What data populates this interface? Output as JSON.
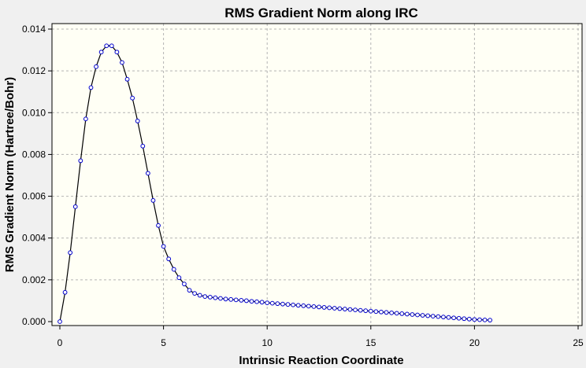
{
  "chart_data": {
    "type": "line",
    "title": "RMS Gradient Norm along IRC",
    "xlabel": "Intrinsic Reaction Coordinate",
    "ylabel": "RMS Gradient Norm (Hartree/Bohr)",
    "xlim": [
      0,
      25
    ],
    "ylim": [
      0,
      0.014
    ],
    "xticks": [
      0,
      5,
      10,
      15,
      20,
      25
    ],
    "xtick_labels": [
      "0",
      "5",
      "10",
      "15",
      "20",
      "25"
    ],
    "yticks": [
      0,
      0.002,
      0.004,
      0.006,
      0.008,
      0.01,
      0.012,
      0.014
    ],
    "ytick_labels": [
      "0.000",
      "0.002",
      "0.004",
      "0.006",
      "0.008",
      "0.010",
      "0.012",
      "0.014"
    ],
    "grid": true,
    "series": [
      {
        "x": [
          0,
          0.25,
          0.5,
          0.75,
          1.0,
          1.25,
          1.5,
          1.75,
          2.0,
          2.25,
          2.5,
          2.75,
          3.0,
          3.25,
          3.5,
          3.75,
          4.0,
          4.25,
          4.5,
          4.75,
          5.0,
          5.25,
          5.5,
          5.75,
          6.0,
          6.25,
          6.5,
          6.75,
          7.0,
          7.25,
          7.5,
          7.75,
          8.0,
          8.25,
          8.5,
          8.75,
          9.0,
          9.25,
          9.5,
          9.75,
          10.0,
          10.25,
          10.5,
          10.75,
          11.0,
          11.25,
          11.5,
          11.75,
          12.0,
          12.25,
          12.5,
          12.75,
          13.0,
          13.25,
          13.5,
          13.75,
          14.0,
          14.25,
          14.5,
          14.75,
          15.0,
          15.25,
          15.5,
          15.75,
          16.0,
          16.25,
          16.5,
          16.75,
          17.0,
          17.25,
          17.5,
          17.75,
          18.0,
          18.25,
          18.5,
          18.75,
          19.0,
          19.25,
          19.5,
          19.75,
          20.0,
          20.25,
          20.5,
          20.75
        ],
        "y": [
          0.0,
          0.0014,
          0.0033,
          0.0055,
          0.0077,
          0.0097,
          0.0112,
          0.0122,
          0.0129,
          0.0132,
          0.0132,
          0.0129,
          0.0124,
          0.0116,
          0.0107,
          0.0096,
          0.0084,
          0.0071,
          0.0058,
          0.0046,
          0.0036,
          0.003,
          0.0025,
          0.0021,
          0.0018,
          0.0015,
          0.00135,
          0.00126,
          0.0012,
          0.00117,
          0.00114,
          0.00111,
          0.00108,
          0.00106,
          0.00104,
          0.00102,
          0.001,
          0.00097,
          0.00095,
          0.00093,
          0.0009,
          0.00088,
          0.00086,
          0.00084,
          0.00082,
          0.0008,
          0.00078,
          0.00076,
          0.00074,
          0.00072,
          0.0007,
          0.00068,
          0.00066,
          0.00064,
          0.00062,
          0.0006,
          0.00058,
          0.00056,
          0.00054,
          0.00052,
          0.0005,
          0.00048,
          0.00046,
          0.00044,
          0.00042,
          0.0004,
          0.00038,
          0.00036,
          0.00034,
          0.00032,
          0.0003,
          0.00028,
          0.00026,
          0.00024,
          0.00022,
          0.0002,
          0.00018,
          0.00016,
          0.00014,
          0.00012,
          0.0001,
          9e-05,
          8e-05,
          7e-05
        ]
      }
    ]
  },
  "colors": {
    "plot_background": "#fffff5",
    "line": "#000000",
    "marker_edge": "#0000cc",
    "grid": "#b4b4b4"
  }
}
